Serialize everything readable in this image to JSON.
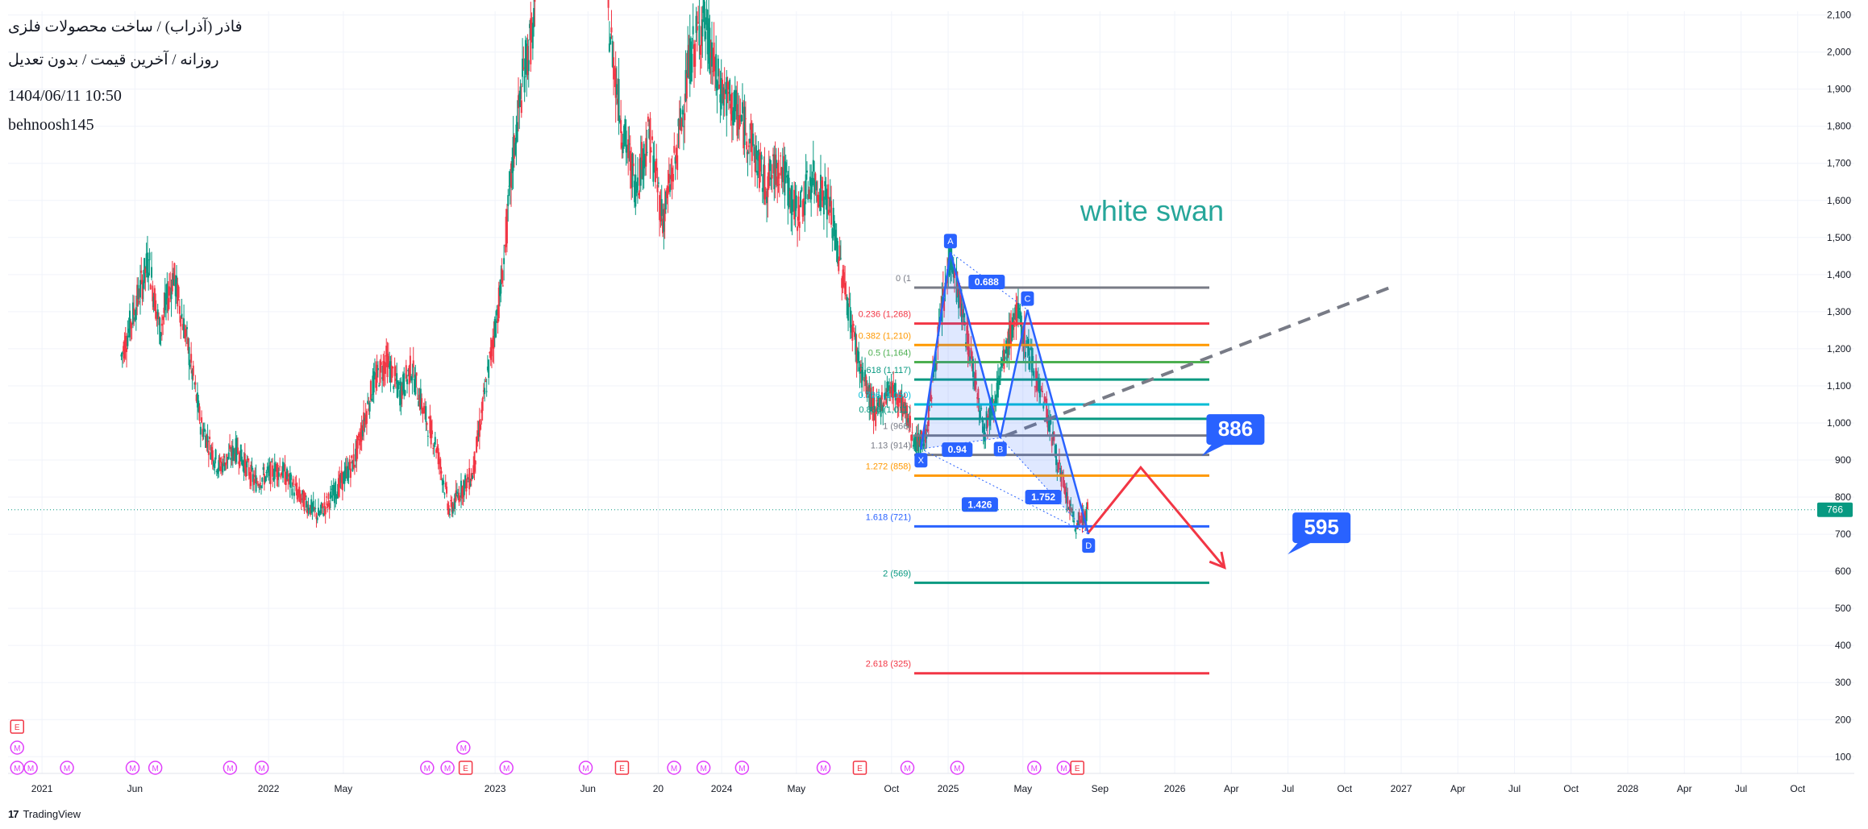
{
  "header": {
    "symbol_line": "فاذر (آذراب) / ساخت محصولات فلزی",
    "details_line": "روزانه / آخرین قیمت / بدون تعدیل",
    "timestamp": "1404/06/11 10:50",
    "author": "behnoosh145"
  },
  "branding": {
    "logo": "tradingview-logo-icon",
    "name": "TradingView"
  },
  "colors": {
    "up": "#089981",
    "down": "#f23645",
    "pattern": "#2962ff",
    "label_bg": "#2962ff",
    "annotation": "#26a69a",
    "arrow": "#f23645",
    "axis_text": "#131722",
    "grid": "#f0f3fa",
    "current_price": "#089981"
  },
  "chart_data": {
    "type": "candlestick",
    "timeframe": "daily",
    "y_axis": {
      "position": "right",
      "ticks": [
        100,
        200,
        300,
        400,
        500,
        600,
        700,
        800,
        900,
        1000,
        1100,
        1200,
        1300,
        1400,
        1500,
        1600,
        1700,
        1800,
        1900,
        2000,
        2100
      ],
      "ylim": [
        55,
        2110
      ]
    },
    "x_axis": {
      "ticks": [
        {
          "label": "2021",
          "t": 2021.0
        },
        {
          "label": "Jun",
          "t": 2021.41
        },
        {
          "label": "2022",
          "t": 2022.0
        },
        {
          "label": "May",
          "t": 2022.33
        },
        {
          "label": "2023",
          "t": 2023.0
        },
        {
          "label": "Jun",
          "t": 2023.41
        },
        {
          "label": "20",
          "t": 2023.72
        },
        {
          "label": "2024",
          "t": 2024.0
        },
        {
          "label": "May",
          "t": 2024.33
        },
        {
          "label": "Oct",
          "t": 2024.75
        },
        {
          "label": "2025",
          "t": 2025.0
        },
        {
          "label": "May",
          "t": 2025.33
        },
        {
          "label": "Sep",
          "t": 2025.67
        },
        {
          "label": "2026",
          "t": 2026.0
        },
        {
          "label": "Apr",
          "t": 2026.25
        },
        {
          "label": "Jul",
          "t": 2026.5
        },
        {
          "label": "Oct",
          "t": 2026.75
        },
        {
          "label": "2027",
          "t": 2027.0
        },
        {
          "label": "Apr",
          "t": 2027.25
        },
        {
          "label": "Jul",
          "t": 2027.5
        },
        {
          "label": "Oct",
          "t": 2027.75
        },
        {
          "label": "2028",
          "t": 2028.0
        },
        {
          "label": "Apr",
          "t": 2028.25
        },
        {
          "label": "Jul",
          "t": 2028.5
        },
        {
          "label": "Oct",
          "t": 2028.75
        }
      ],
      "xlim": [
        2020.85,
        2029.0
      ]
    },
    "current_price": 766,
    "price_path": [
      {
        "t": 2021.35,
        "p": 1180
      },
      {
        "t": 2021.42,
        "p": 1330
      },
      {
        "t": 2021.47,
        "p": 1440
      },
      {
        "t": 2021.52,
        "p": 1250
      },
      {
        "t": 2021.58,
        "p": 1400
      },
      {
        "t": 2021.64,
        "p": 1220
      },
      {
        "t": 2021.7,
        "p": 1000
      },
      {
        "t": 2021.78,
        "p": 880
      },
      {
        "t": 2021.86,
        "p": 930
      },
      {
        "t": 2021.94,
        "p": 840
      },
      {
        "t": 2022.05,
        "p": 880
      },
      {
        "t": 2022.14,
        "p": 800
      },
      {
        "t": 2022.22,
        "p": 750
      },
      {
        "t": 2022.3,
        "p": 820
      },
      {
        "t": 2022.38,
        "p": 900
      },
      {
        "t": 2022.46,
        "p": 1100
      },
      {
        "t": 2022.52,
        "p": 1170
      },
      {
        "t": 2022.58,
        "p": 1080
      },
      {
        "t": 2022.63,
        "p": 1150
      },
      {
        "t": 2022.69,
        "p": 1020
      },
      {
        "t": 2022.74,
        "p": 940
      },
      {
        "t": 2022.8,
        "p": 760
      },
      {
        "t": 2022.85,
        "p": 820
      },
      {
        "t": 2022.9,
        "p": 860
      },
      {
        "t": 2023.03,
        "p": 1380
      },
      {
        "t": 2023.08,
        "p": 1720
      },
      {
        "t": 2023.13,
        "p": 1960
      },
      {
        "t": 2023.18,
        "p": 2090
      },
      {
        "t": 2023.5,
        "p": 2090
      },
      {
        "t": 2023.56,
        "p": 1800
      },
      {
        "t": 2023.62,
        "p": 1640
      },
      {
        "t": 2023.68,
        "p": 1780
      },
      {
        "t": 2023.74,
        "p": 1550
      },
      {
        "t": 2023.8,
        "p": 1720
      },
      {
        "t": 2023.86,
        "p": 1980
      },
      {
        "t": 2023.92,
        "p": 2090
      },
      {
        "t": 2023.98,
        "p": 1920
      },
      {
        "t": 2024.05,
        "p": 1850
      },
      {
        "t": 2024.12,
        "p": 1780
      },
      {
        "t": 2024.19,
        "p": 1640
      },
      {
        "t": 2024.26,
        "p": 1700
      },
      {
        "t": 2024.33,
        "p": 1560
      },
      {
        "t": 2024.4,
        "p": 1660
      },
      {
        "t": 2024.47,
        "p": 1600
      },
      {
        "t": 2024.54,
        "p": 1380
      },
      {
        "t": 2024.61,
        "p": 1150
      },
      {
        "t": 2024.68,
        "p": 1020
      },
      {
        "t": 2024.74,
        "p": 1100
      },
      {
        "t": 2024.8,
        "p": 1050
      },
      {
        "t": 2024.86,
        "p": 940
      },
      {
        "t": 2024.9,
        "p": 960
      },
      {
        "t": 2024.95,
        "p": 1200
      },
      {
        "t": 2025.01,
        "p": 1460
      },
      {
        "t": 2025.06,
        "p": 1300
      },
      {
        "t": 2025.11,
        "p": 1150
      },
      {
        "t": 2025.16,
        "p": 980
      },
      {
        "t": 2025.22,
        "p": 1100
      },
      {
        "t": 2025.3,
        "p": 1300
      },
      {
        "t": 2025.36,
        "p": 1180
      },
      {
        "t": 2025.43,
        "p": 1050
      },
      {
        "t": 2025.5,
        "p": 850
      },
      {
        "t": 2025.56,
        "p": 720
      },
      {
        "t": 2025.62,
        "p": 766
      }
    ],
    "harmonic_pattern": {
      "points": [
        {
          "label": "X",
          "t": 2024.88,
          "p": 930
        },
        {
          "label": "A",
          "t": 2025.01,
          "p": 1460
        },
        {
          "label": "B",
          "t": 2025.23,
          "p": 960
        },
        {
          "label": "C",
          "t": 2025.35,
          "p": 1305
        },
        {
          "label": "D",
          "t": 2025.62,
          "p": 700
        }
      ],
      "ratios": [
        {
          "label": "0.688",
          "t": 2025.17,
          "p": 1380
        },
        {
          "label": "0.94",
          "t": 2025.04,
          "p": 928
        },
        {
          "label": "1.426",
          "t": 2025.14,
          "p": 780
        },
        {
          "label": "1.752",
          "t": 2025.42,
          "p": 800
        }
      ]
    },
    "fib_levels": [
      {
        "ratio": "0",
        "label": "0 (1",
        "value": 1365,
        "color": "#787b86"
      },
      {
        "ratio": "0.236",
        "label": "0.236 (1,268)",
        "value": 1268,
        "color": "#f23645"
      },
      {
        "ratio": "0.382",
        "label": "0.382 (1,210)",
        "value": 1210,
        "color": "#ff9800"
      },
      {
        "ratio": "0.5",
        "label": "0.5 (1,164)",
        "value": 1164,
        "color": "#4caf50"
      },
      {
        "ratio": "0.618",
        "label": "0.618 (1,117)",
        "value": 1117,
        "color": "#089981"
      },
      {
        "ratio": "0.786",
        "label": "0.786 (1,050)",
        "value": 1050,
        "color": "#00bcd4"
      },
      {
        "ratio": "0.886",
        "label": "0.886 (1,011)",
        "value": 1011,
        "color": "#089981"
      },
      {
        "ratio": "1",
        "label": "1 (966)",
        "value": 966,
        "color": "#787b86"
      },
      {
        "ratio": "1.13",
        "label": "1.13 (914)",
        "value": 914,
        "color": "#787b86"
      },
      {
        "ratio": "1.272",
        "label": "1.272 (858)",
        "value": 858,
        "color": "#ff9800"
      },
      {
        "ratio": "1.618",
        "label": "1.618 (721)",
        "value": 721,
        "color": "#2962ff"
      },
      {
        "ratio": "2",
        "label": "2 (569)",
        "value": 569,
        "color": "#089981"
      },
      {
        "ratio": "2.618",
        "label": "2.618 (325)",
        "value": 325,
        "color": "#f23645"
      }
    ],
    "trend_line": {
      "from": {
        "t": 2025.25,
        "p": 965
      },
      "to": {
        "t": 2026.95,
        "p": 1365
      },
      "style": "dashed"
    },
    "projection": [
      {
        "t": 2025.62,
        "p": 705
      },
      {
        "t": 2025.85,
        "p": 880
      },
      {
        "t": 2026.22,
        "p": 610
      }
    ],
    "callouts": [
      {
        "label": "886",
        "t": 2026.14,
        "p": 915
      },
      {
        "label": "595",
        "t": 2026.52,
        "p": 650
      }
    ],
    "annotation": {
      "text": "white swan",
      "t": 2025.9,
      "p": 1545
    },
    "event_markers": {
      "earnings_label": "E",
      "meeting_label": "M",
      "row1": [
        {
          "t": 2020.89,
          "k": "E"
        }
      ],
      "row2": [
        {
          "t": 2020.89,
          "k": "M"
        },
        {
          "t": 2022.86,
          "k": "M"
        }
      ],
      "row3": [
        {
          "t": 2020.89,
          "k": "M"
        },
        {
          "t": 2020.95,
          "k": "M"
        },
        {
          "t": 2021.11,
          "k": "M"
        },
        {
          "t": 2021.4,
          "k": "M"
        },
        {
          "t": 2021.5,
          "k": "M"
        },
        {
          "t": 2021.83,
          "k": "M"
        },
        {
          "t": 2021.97,
          "k": "M"
        },
        {
          "t": 2022.7,
          "k": "M"
        },
        {
          "t": 2022.79,
          "k": "M"
        },
        {
          "t": 2022.87,
          "k": "E"
        },
        {
          "t": 2023.05,
          "k": "M"
        },
        {
          "t": 2023.4,
          "k": "M"
        },
        {
          "t": 2023.56,
          "k": "E"
        },
        {
          "t": 2023.79,
          "k": "M"
        },
        {
          "t": 2023.92,
          "k": "M"
        },
        {
          "t": 2024.09,
          "k": "M"
        },
        {
          "t": 2024.45,
          "k": "M"
        },
        {
          "t": 2024.61,
          "k": "E"
        },
        {
          "t": 2024.82,
          "k": "M"
        },
        {
          "t": 2025.04,
          "k": "M"
        },
        {
          "t": 2025.38,
          "k": "M"
        },
        {
          "t": 2025.51,
          "k": "M"
        },
        {
          "t": 2025.57,
          "k": "E"
        }
      ]
    }
  }
}
